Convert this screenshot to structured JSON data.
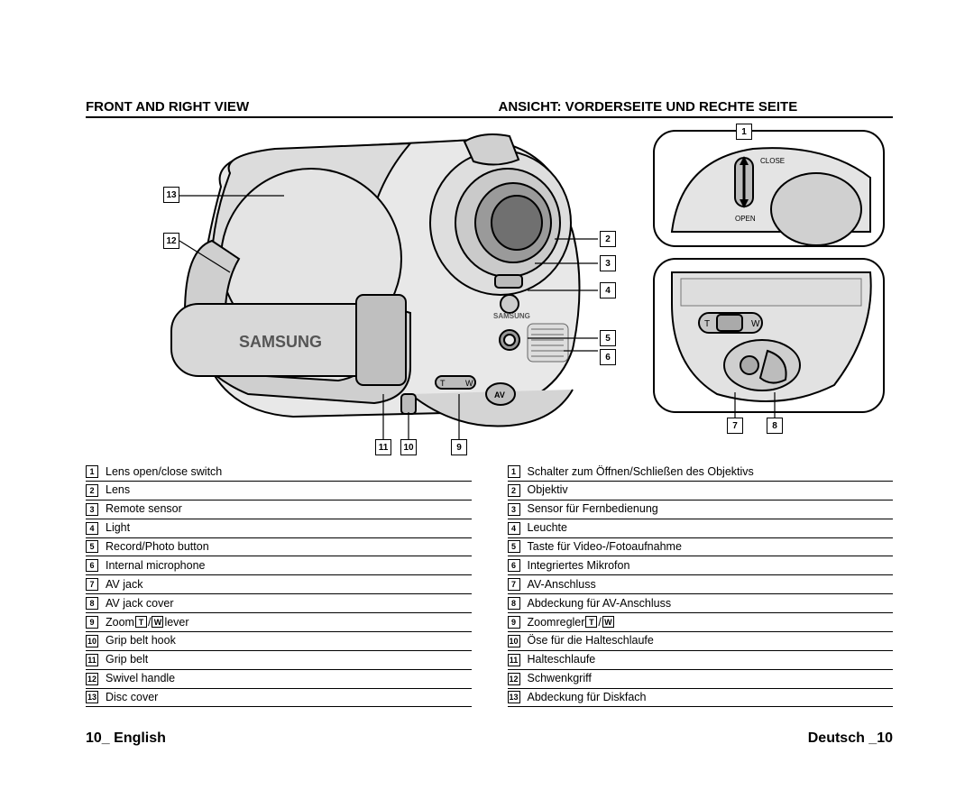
{
  "headings": {
    "left": "FRONT AND RIGHT VIEW",
    "right": "ANSICHT: VORDERSEITE UND RECHTE SEITE"
  },
  "labels_small": {
    "close": "CLOSE",
    "open": "OPEN",
    "t": "T",
    "w": "W",
    "av": "AV",
    "brand": "SAMSUNG"
  },
  "callouts": {
    "c1": "1",
    "c2": "2",
    "c3": "3",
    "c4": "4",
    "c5": "5",
    "c6": "6",
    "c7": "7",
    "c8": "8",
    "c9": "9",
    "c10": "10",
    "c11": "11",
    "c12": "12",
    "c13": "13"
  },
  "english": {
    "items": [
      {
        "n": "1",
        "t": "Lens open/close switch"
      },
      {
        "n": "2",
        "t": "Lens"
      },
      {
        "n": "3",
        "t": "Remote sensor"
      },
      {
        "n": "4",
        "t": "Light"
      },
      {
        "n": "5",
        "t": "Record/Photo button"
      },
      {
        "n": "6",
        "t": "Internal microphone"
      },
      {
        "n": "7",
        "t": "AV jack"
      },
      {
        "n": "8",
        "t": "AV jack cover"
      },
      {
        "n": "9",
        "t": "Zoom ",
        "tw": true,
        "t2": " lever"
      },
      {
        "n": "10",
        "t": "Grip belt hook"
      },
      {
        "n": "11",
        "t": "Grip belt"
      },
      {
        "n": "12",
        "t": "Swivel handle"
      },
      {
        "n": "13",
        "t": "Disc cover"
      }
    ]
  },
  "german": {
    "items": [
      {
        "n": "1",
        "t": "Schalter zum Öffnen/Schließen des Objektivs"
      },
      {
        "n": "2",
        "t": "Objektiv"
      },
      {
        "n": "3",
        "t": "Sensor für Fernbedienung"
      },
      {
        "n": "4",
        "t": "Leuchte"
      },
      {
        "n": "5",
        "t": "Taste für Video-/Fotoaufnahme"
      },
      {
        "n": "6",
        "t": "Integriertes Mikrofon"
      },
      {
        "n": "7",
        "t": "AV-Anschluss"
      },
      {
        "n": "8",
        "t": "Abdeckung für AV-Anschluss"
      },
      {
        "n": "9",
        "t": "Zoomregler ",
        "tw": true,
        "t2": ""
      },
      {
        "n": "10",
        "t": "Öse für die Halteschlaufe"
      },
      {
        "n": "11",
        "t": "Halteschlaufe"
      },
      {
        "n": "12",
        "t": "Schwenkgriff"
      },
      {
        "n": "13",
        "t": "Abdeckung für Diskfach"
      }
    ]
  },
  "footer": {
    "left_num": "10",
    "left_txt": "_ English",
    "right_txt": "Deutsch _",
    "right_num": "10"
  },
  "colors": {
    "line": "#000000",
    "fill_light": "#f2f2f2",
    "fill_mid": "#cfcfcf",
    "fill_dark": "#9a9a9a",
    "bg": "#ffffff"
  }
}
